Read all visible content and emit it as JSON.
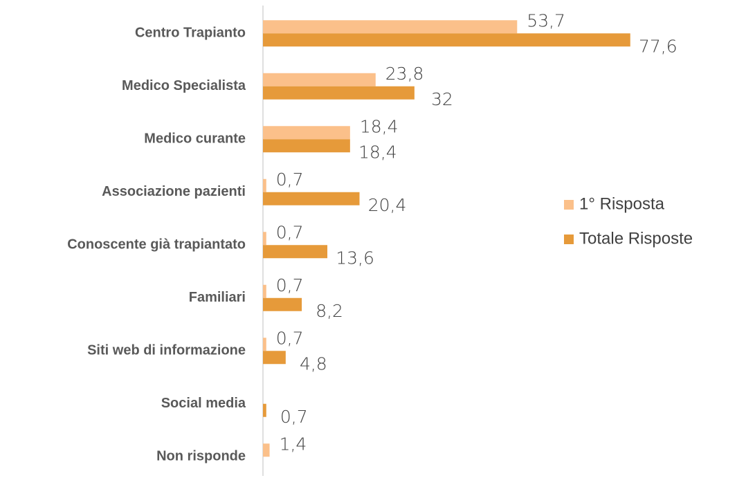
{
  "chart_data": {
    "type": "bar",
    "orientation": "horizontal",
    "categories": [
      "Centro Trapianto",
      "Medico Specialista",
      "Medico curante",
      "Associazione pazienti",
      "Conoscente già trapiantato",
      "Familiari",
      "Siti web di informazione",
      "Social media",
      "Non risponde"
    ],
    "series": [
      {
        "name": "1° Risposta",
        "color": "#fbc08a",
        "values": [
          53.7,
          23.8,
          18.4,
          0.7,
          0.7,
          0.7,
          0.7,
          null,
          1.4
        ],
        "value_labels": [
          "53,7",
          "23,8",
          "18,4",
          "0,7",
          "0,7",
          "0,7",
          "0,7",
          null,
          "1,4"
        ]
      },
      {
        "name": "Totale Risposte",
        "color": "#e69a3a",
        "values": [
          77.6,
          32,
          18.4,
          20.4,
          13.6,
          8.2,
          4.8,
          0.7,
          null
        ],
        "value_labels": [
          "77,6",
          "32",
          "18,4",
          "20,4",
          "13,6",
          "8,2",
          "4,8",
          "0,7",
          null
        ]
      }
    ],
    "xlim": [
      0,
      100
    ],
    "legend": "right"
  }
}
